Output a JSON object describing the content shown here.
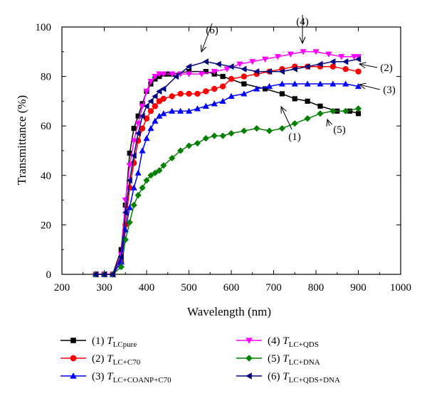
{
  "chart_data": {
    "type": "line",
    "title": "",
    "xlabel": "Wavelength (nm)",
    "ylabel": "Transmittance (%)",
    "xlim": [
      200,
      1000
    ],
    "ylim": [
      0,
      100
    ],
    "xticks": [
      "200",
      "300",
      "400",
      "500",
      "600",
      "700",
      "800",
      "900",
      "1000"
    ],
    "yticks": [
      "0",
      "20",
      "40",
      "60",
      "80",
      "100"
    ],
    "grid": false,
    "legend_position": "bottom",
    "series": [
      {
        "id": "1",
        "legend_prefix": "(1) ",
        "legend_main": "T",
        "legend_sub": "LCpure",
        "color": "#000000",
        "marker": "square",
        "x": [
          280,
          300,
          320,
          340,
          350,
          360,
          370,
          380,
          390,
          400,
          410,
          420,
          430,
          440,
          450,
          460,
          500,
          540,
          560,
          580,
          630,
          680,
          720,
          750,
          780,
          810,
          850,
          880,
          900
        ],
        "y": [
          0,
          0,
          0,
          10,
          28,
          49,
          59,
          64,
          69,
          74,
          77,
          79,
          80,
          81,
          81,
          81,
          82,
          82,
          81,
          80,
          77,
          75,
          73,
          71,
          70,
          68,
          66,
          66,
          65
        ]
      },
      {
        "id": "2",
        "legend_prefix": "(2) ",
        "legend_main": "T",
        "legend_sub": "LC+C70",
        "color": "#ff0000",
        "marker": "circle",
        "x": [
          280,
          300,
          320,
          340,
          350,
          360,
          370,
          380,
          390,
          400,
          410,
          420,
          430,
          440,
          460,
          480,
          500,
          520,
          540,
          560,
          580,
          600,
          630,
          660,
          690,
          720,
          750,
          780,
          810,
          840,
          870,
          900
        ],
        "y": [
          0,
          0,
          0,
          5,
          20,
          35,
          45,
          54,
          59,
          63,
          66,
          68,
          70,
          71,
          72,
          73,
          73,
          73,
          74,
          75,
          76,
          79,
          80,
          81,
          82,
          83,
          84,
          84,
          84,
          84,
          83,
          82
        ]
      },
      {
        "id": "3",
        "legend_prefix": "(3) ",
        "legend_main": "T",
        "legend_sub": "LC+COANP+C70",
        "color": "#0000ff",
        "marker": "triangle-up",
        "x": [
          280,
          300,
          320,
          340,
          350,
          360,
          370,
          380,
          390,
          400,
          410,
          420,
          430,
          440,
          460,
          480,
          500,
          520,
          540,
          560,
          580,
          600,
          630,
          660,
          690,
          720,
          750,
          780,
          810,
          840,
          870,
          900
        ],
        "y": [
          0,
          0,
          0,
          5,
          18,
          27,
          35,
          41,
          50,
          55,
          59,
          62,
          64,
          65,
          66,
          66,
          66,
          67,
          68,
          69,
          70,
          72,
          73,
          75,
          76,
          77,
          77,
          77,
          77,
          77,
          77,
          76
        ]
      },
      {
        "id": "4",
        "legend_prefix": "(4) ",
        "legend_main": "T",
        "legend_sub": "LC+QDS",
        "color": "#ff00ff",
        "marker": "triangle-down",
        "x": [
          280,
          300,
          320,
          340,
          350,
          360,
          370,
          380,
          390,
          400,
          410,
          420,
          430,
          440,
          460,
          480,
          500,
          530,
          560,
          590,
          620,
          650,
          680,
          710,
          740,
          770,
          800,
          830,
          860,
          890,
          900
        ],
        "y": [
          0,
          0,
          0,
          8,
          30,
          44,
          54,
          61,
          68,
          74,
          78,
          80,
          81,
          81,
          81,
          81,
          81,
          81,
          82,
          83,
          85,
          86,
          87,
          88,
          89,
          90,
          90,
          89,
          88,
          88,
          88
        ]
      },
      {
        "id": "5",
        "legend_prefix": "(5) ",
        "legend_main": "T",
        "legend_sub": "LC+DNA",
        "color": "#008000",
        "marker": "diamond",
        "x": [
          280,
          300,
          320,
          340,
          350,
          360,
          370,
          380,
          390,
          400,
          410,
          420,
          430,
          440,
          460,
          480,
          500,
          520,
          540,
          560,
          580,
          600,
          630,
          660,
          690,
          720,
          750,
          780,
          810,
          840,
          870,
          900
        ],
        "y": [
          0,
          0,
          0,
          3,
          14,
          21,
          28,
          32,
          35,
          38,
          40,
          41,
          42,
          44,
          47,
          50,
          52,
          53,
          55,
          56,
          56,
          57,
          58,
          59,
          58,
          59,
          61,
          63,
          65,
          66,
          66,
          67
        ]
      },
      {
        "id": "6",
        "legend_prefix": "(6) ",
        "legend_main": "T",
        "legend_sub": "LC+QDS+DNA",
        "color": "#000080",
        "marker": "triangle-left",
        "x": [
          280,
          300,
          320,
          340,
          350,
          360,
          370,
          380,
          390,
          400,
          410,
          420,
          430,
          440,
          470,
          500,
          540,
          570,
          600,
          630,
          660,
          690,
          720,
          750,
          780,
          810,
          840,
          870,
          900
        ],
        "y": [
          0,
          0,
          0,
          7,
          25,
          38,
          48,
          57,
          64,
          68,
          70,
          72,
          74,
          75,
          80,
          84,
          86,
          85,
          84,
          83,
          82,
          82,
          82,
          83,
          84,
          85,
          86,
          86,
          87
        ]
      }
    ],
    "annotations": [
      {
        "label": "(1)",
        "series": "1"
      },
      {
        "label": "(2)",
        "series": "2"
      },
      {
        "label": "(3)",
        "series": "3"
      },
      {
        "label": "(4)",
        "series": "4"
      },
      {
        "label": "(5)",
        "series": "5"
      },
      {
        "label": "(6)",
        "series": "6"
      }
    ]
  }
}
